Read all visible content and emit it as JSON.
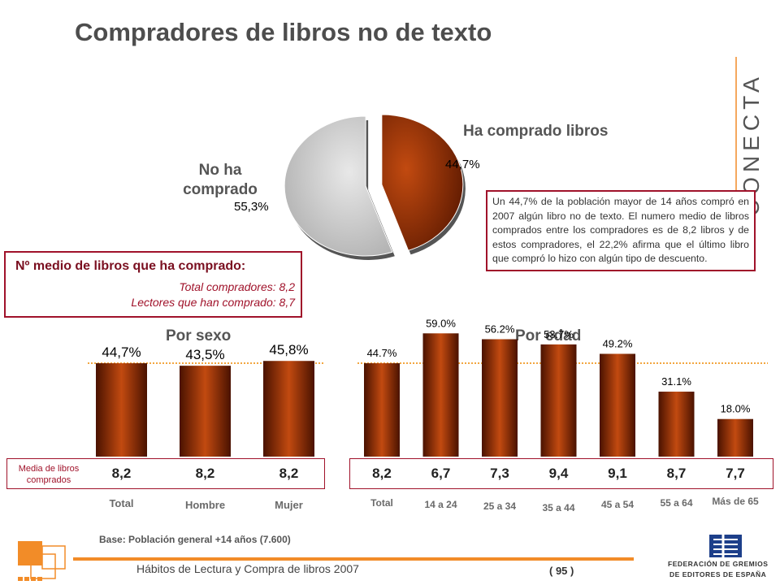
{
  "title": "Compradores de libros no de texto",
  "pie": {
    "label_yes": "Ha comprado libros",
    "label_no_line1": "No ha",
    "label_no_line2": "comprado",
    "pct_yes_label": "44,7%",
    "pct_no_label": "55,3%"
  },
  "description": "Un 44,7% de la población mayor de 14 años compró en 2007 algún libro no de texto. El numero medio de libros comprados entre los compradores es de 8,2 libros y de estos compradores, el 22,2% afirma que el último libro que compró lo hizo con algún tipo de descuento.",
  "avg_box": {
    "heading": "Nº medio de libros que ha comprado:",
    "row1": "Total compradores: 8,2",
    "row2": "Lectores que han comprado: 8,7"
  },
  "media_label_line1": "Media de libros",
  "media_label_line2": "comprados",
  "base": "Base: Población general +14 años (7.600)",
  "footer": "Hábitos de Lectura y Compra de libros 2007",
  "page": "( 95 )",
  "federation_line1": "FEDERACIÓN DE GREMIOS",
  "federation_line2": "DE EDITORES DE ESPAÑA",
  "brand": "CONECTA",
  "colors": {
    "accent": "#a0122a",
    "bar_dark": "#5a1800",
    "bar_light": "#c24a10",
    "pie_gray": "#bfbfbf",
    "orange": "#f28c28"
  },
  "chart_data": [
    {
      "type": "pie",
      "categories": [
        "Ha comprado libros",
        "No ha comprado"
      ],
      "values": [
        44.7,
        55.3
      ]
    },
    {
      "type": "bar",
      "title": "Por sexo",
      "categories": [
        "Total",
        "Hombre",
        "Mujer"
      ],
      "values": [
        44.7,
        43.5,
        45.8
      ],
      "value_labels": [
        "44,7%",
        "43,5%",
        "45,8%"
      ],
      "media": [
        "8,2",
        "8,2",
        "8,2"
      ],
      "reference_line": 44.7,
      "ylim": [
        0,
        70
      ]
    },
    {
      "type": "bar",
      "title": "Por edad",
      "categories": [
        "Total",
        "14 a 24",
        "25 a 34",
        "35 a 44",
        "45 a 54",
        "55 a 64",
        "Más de 65"
      ],
      "values": [
        44.7,
        59.0,
        56.2,
        53.7,
        49.2,
        31.1,
        18.0
      ],
      "value_labels": [
        "44.7%",
        "59.0%",
        "56.2%",
        "53.7%",
        "49.2%",
        "31.1%",
        "18.0%"
      ],
      "media": [
        "8,2",
        "6,7",
        "7,3",
        "9,4",
        "9,1",
        "8,7",
        "7,7"
      ],
      "reference_line": 44.7,
      "ylim": [
        0,
        70
      ]
    }
  ]
}
